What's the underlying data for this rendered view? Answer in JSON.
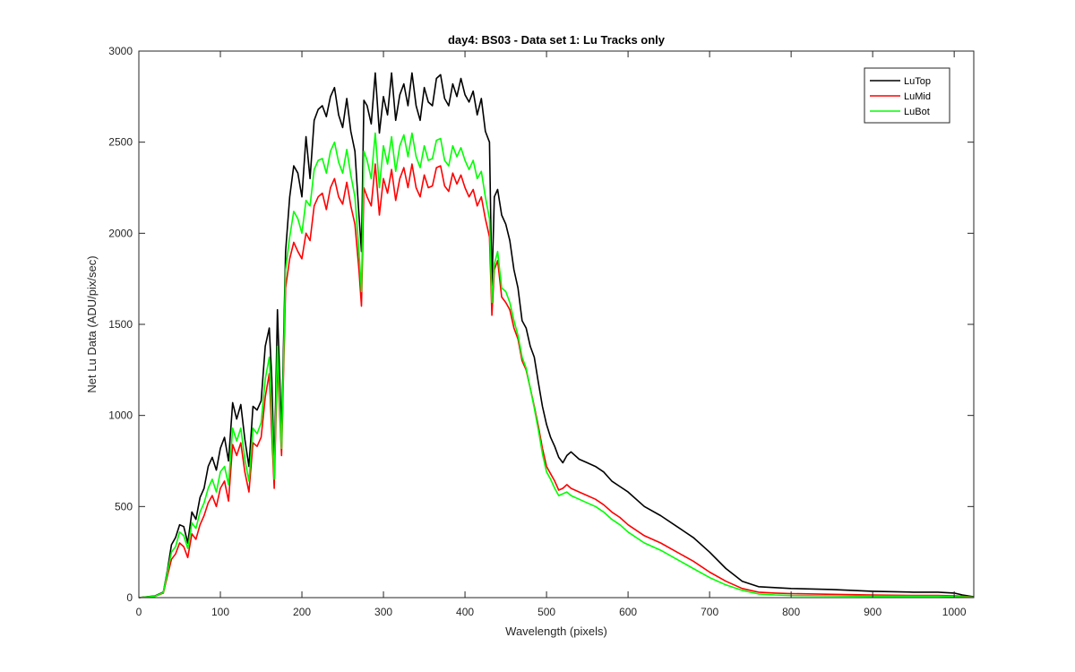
{
  "chart_data": {
    "type": "line",
    "title": "day4: BS03 - Data set 1: Lu Tracks only",
    "xlabel": "Wavelength (pixels)",
    "ylabel": "Net Lu Data (ADU/pix/sec)",
    "xlim": [
      0,
      1024
    ],
    "ylim": [
      0,
      3000
    ],
    "xticks": [
      0,
      100,
      200,
      300,
      400,
      500,
      600,
      700,
      800,
      900,
      1000
    ],
    "yticks": [
      0,
      500,
      1000,
      1500,
      2000,
      2500,
      3000
    ],
    "grid": false,
    "legend_position": "top-right",
    "series": [
      {
        "name": "LuTop",
        "color": "#000000",
        "x": [
          0,
          20,
          30,
          35,
          40,
          45,
          50,
          55,
          60,
          65,
          70,
          75,
          80,
          85,
          90,
          95,
          100,
          105,
          110,
          115,
          120,
          125,
          130,
          135,
          140,
          145,
          150,
          155,
          160,
          163,
          166,
          170,
          175,
          180,
          185,
          190,
          195,
          200,
          205,
          210,
          215,
          220,
          225,
          230,
          235,
          240,
          245,
          250,
          255,
          260,
          265,
          270,
          273,
          276,
          280,
          285,
          290,
          295,
          300,
          305,
          310,
          315,
          320,
          325,
          330,
          335,
          340,
          345,
          350,
          355,
          360,
          365,
          370,
          375,
          380,
          385,
          390,
          395,
          400,
          405,
          410,
          415,
          420,
          425,
          430,
          433,
          436,
          440,
          445,
          450,
          455,
          460,
          465,
          470,
          475,
          480,
          485,
          490,
          495,
          500,
          505,
          510,
          515,
          520,
          525,
          530,
          540,
          550,
          560,
          570,
          580,
          590,
          600,
          620,
          640,
          660,
          680,
          700,
          720,
          740,
          760,
          780,
          800,
          850,
          900,
          950,
          980,
          1000,
          1010,
          1024
        ],
        "y": [
          0,
          10,
          30,
          150,
          290,
          330,
          400,
          390,
          300,
          470,
          430,
          550,
          600,
          720,
          770,
          700,
          820,
          880,
          750,
          1070,
          980,
          1060,
          870,
          720,
          1050,
          1030,
          1080,
          1380,
          1480,
          1200,
          690,
          1580,
          900,
          1900,
          2200,
          2370,
          2330,
          2200,
          2530,
          2300,
          2620,
          2680,
          2700,
          2640,
          2750,
          2800,
          2650,
          2580,
          2740,
          2560,
          2450,
          2100,
          1900,
          2730,
          2700,
          2600,
          2880,
          2550,
          2750,
          2650,
          2880,
          2620,
          2760,
          2820,
          2700,
          2880,
          2700,
          2620,
          2800,
          2720,
          2700,
          2850,
          2870,
          2740,
          2700,
          2820,
          2750,
          2850,
          2760,
          2720,
          2780,
          2650,
          2740,
          2560,
          2500,
          1700,
          2200,
          2240,
          2100,
          2050,
          1960,
          1800,
          1700,
          1520,
          1480,
          1380,
          1320,
          1180,
          1050,
          950,
          880,
          830,
          770,
          740,
          780,
          800,
          760,
          740,
          720,
          690,
          640,
          610,
          580,
          500,
          450,
          390,
          330,
          250,
          160,
          90,
          60,
          55,
          50,
          45,
          35,
          30,
          30,
          25,
          15,
          5
        ]
      },
      {
        "name": "LuMid",
        "color": "#ff0000",
        "x": [
          0,
          20,
          30,
          35,
          40,
          45,
          50,
          55,
          60,
          65,
          70,
          75,
          80,
          85,
          90,
          95,
          100,
          105,
          110,
          115,
          120,
          125,
          130,
          135,
          140,
          145,
          150,
          155,
          160,
          163,
          166,
          170,
          175,
          180,
          185,
          190,
          195,
          200,
          205,
          210,
          215,
          220,
          225,
          230,
          235,
          240,
          245,
          250,
          255,
          260,
          265,
          270,
          273,
          276,
          280,
          285,
          290,
          295,
          300,
          305,
          310,
          315,
          320,
          325,
          330,
          335,
          340,
          345,
          350,
          355,
          360,
          365,
          370,
          375,
          380,
          385,
          390,
          395,
          400,
          405,
          410,
          415,
          420,
          425,
          430,
          433,
          436,
          440,
          445,
          450,
          455,
          460,
          465,
          470,
          475,
          480,
          485,
          490,
          495,
          500,
          505,
          510,
          515,
          520,
          525,
          530,
          540,
          550,
          560,
          570,
          580,
          590,
          600,
          620,
          640,
          660,
          680,
          700,
          720,
          740,
          760,
          780,
          800,
          850,
          900,
          950,
          980,
          1000,
          1010,
          1024
        ],
        "y": [
          0,
          8,
          25,
          120,
          210,
          240,
          300,
          280,
          220,
          350,
          320,
          400,
          450,
          520,
          560,
          500,
          600,
          640,
          530,
          840,
          780,
          850,
          690,
          580,
          850,
          830,
          880,
          1100,
          1230,
          900,
          600,
          1300,
          780,
          1700,
          1860,
          1950,
          1900,
          1860,
          2000,
          1960,
          2150,
          2200,
          2220,
          2130,
          2250,
          2300,
          2200,
          2160,
          2280,
          2150,
          2050,
          1800,
          1600,
          2250,
          2200,
          2150,
          2380,
          2100,
          2300,
          2220,
          2350,
          2180,
          2300,
          2360,
          2250,
          2380,
          2250,
          2200,
          2320,
          2250,
          2260,
          2360,
          2370,
          2260,
          2230,
          2330,
          2270,
          2320,
          2250,
          2200,
          2240,
          2150,
          2200,
          2080,
          1980,
          1550,
          1800,
          1850,
          1650,
          1620,
          1580,
          1480,
          1420,
          1300,
          1250,
          1150,
          1050,
          940,
          820,
          720,
          680,
          640,
          590,
          600,
          620,
          600,
          580,
          560,
          540,
          510,
          470,
          440,
          400,
          340,
          300,
          250,
          200,
          140,
          90,
          50,
          30,
          25,
          22,
          18,
          15,
          12,
          12,
          10,
          8,
          3
        ]
      },
      {
        "name": "LuBot",
        "color": "#00ff00",
        "x": [
          0,
          20,
          30,
          35,
          40,
          45,
          50,
          55,
          60,
          65,
          70,
          75,
          80,
          85,
          90,
          95,
          100,
          105,
          110,
          115,
          120,
          125,
          130,
          135,
          140,
          145,
          150,
          155,
          160,
          163,
          166,
          170,
          175,
          180,
          185,
          190,
          195,
          200,
          205,
          210,
          215,
          220,
          225,
          230,
          235,
          240,
          245,
          250,
          255,
          260,
          265,
          270,
          273,
          276,
          280,
          285,
          290,
          295,
          300,
          305,
          310,
          315,
          320,
          325,
          330,
          335,
          340,
          345,
          350,
          355,
          360,
          365,
          370,
          375,
          380,
          385,
          390,
          395,
          400,
          405,
          410,
          415,
          420,
          425,
          430,
          433,
          436,
          440,
          445,
          450,
          455,
          460,
          465,
          470,
          475,
          480,
          485,
          490,
          495,
          500,
          505,
          510,
          515,
          520,
          525,
          530,
          540,
          550,
          560,
          570,
          580,
          590,
          600,
          620,
          640,
          660,
          680,
          700,
          720,
          740,
          760,
          780,
          800,
          850,
          900,
          950,
          980,
          1000,
          1010,
          1024
        ],
        "y": [
          0,
          8,
          28,
          140,
          250,
          280,
          360,
          340,
          270,
          410,
          380,
          470,
          520,
          600,
          650,
          580,
          690,
          720,
          620,
          930,
          860,
          930,
          760,
          640,
          930,
          900,
          960,
          1200,
          1320,
          1000,
          650,
          1380,
          820,
          1800,
          1980,
          2120,
          2080,
          2000,
          2180,
          2150,
          2350,
          2400,
          2410,
          2330,
          2450,
          2500,
          2390,
          2330,
          2460,
          2320,
          2200,
          1900,
          1680,
          2450,
          2400,
          2300,
          2550,
          2250,
          2480,
          2380,
          2530,
          2340,
          2480,
          2540,
          2420,
          2550,
          2420,
          2360,
          2480,
          2400,
          2410,
          2510,
          2520,
          2400,
          2370,
          2480,
          2420,
          2470,
          2400,
          2350,
          2400,
          2300,
          2340,
          2200,
          2080,
          1620,
          1830,
          1900,
          1700,
          1680,
          1620,
          1520,
          1440,
          1320,
          1260,
          1150,
          1040,
          920,
          790,
          690,
          650,
          600,
          560,
          570,
          580,
          560,
          540,
          520,
          500,
          470,
          430,
          400,
          360,
          300,
          260,
          210,
          160,
          110,
          70,
          40,
          20,
          15,
          12,
          10,
          8,
          8,
          8,
          6,
          5,
          2
        ]
      }
    ]
  }
}
